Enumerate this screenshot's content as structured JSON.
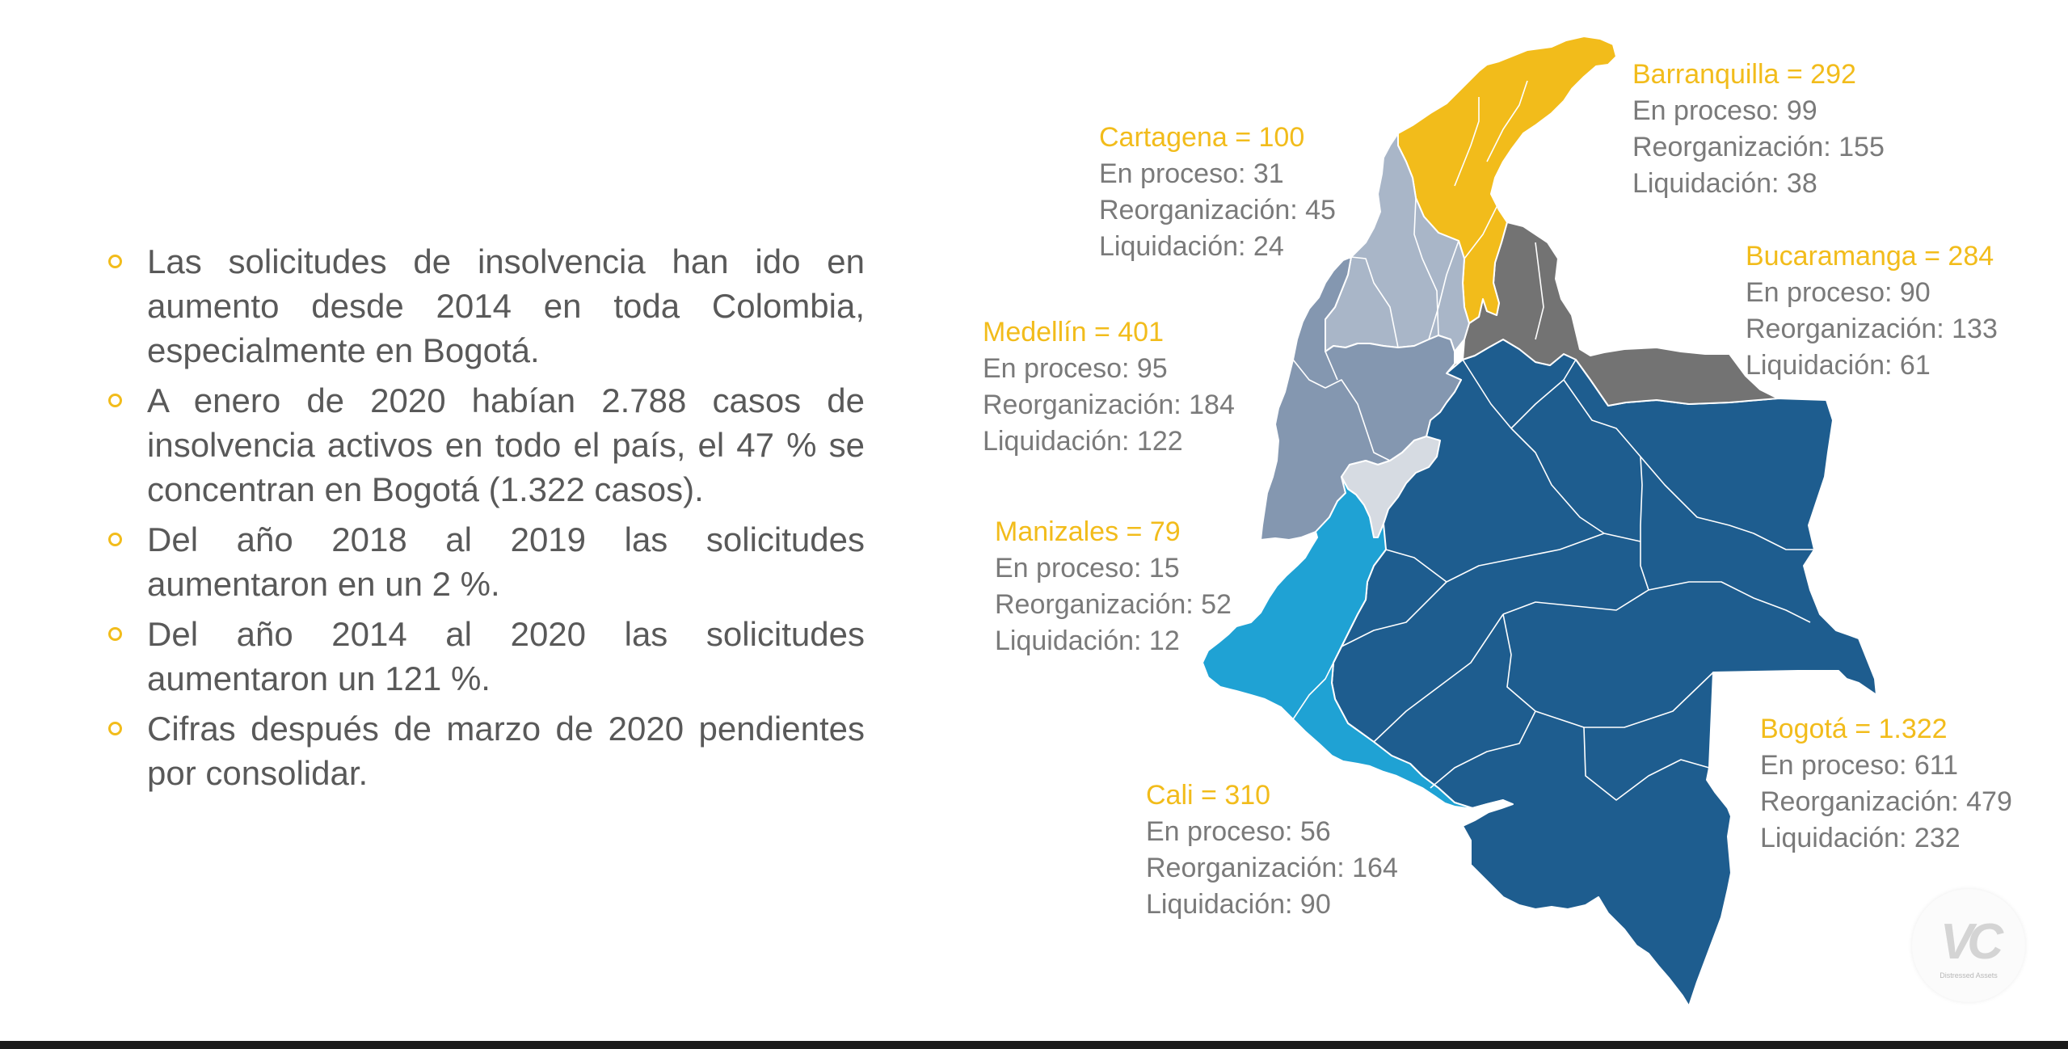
{
  "bullets": [
    "Las solicitudes de insolvencia han ido en aumento desde 2014 en toda Colombia, especialmente en Bogotá.",
    "A enero de 2020 habían 2.788 casos de insolvencia activos en todo el país, el 47 % se concentran en Bogotá (1.322 casos).",
    "Del año 2018 al 2019 las solicitudes aumentaron en un 2 %.",
    "Del año 2014 al 2020 las solicitudes aumentaron un 121 %.",
    "Cifras después de marzo de 2020 pendientes por consolidar."
  ],
  "cities": {
    "barranquilla": {
      "title": "Barranquilla = 292",
      "en_proceso": "En proceso: 99",
      "reorganizacion": "Reorganización: 155",
      "liquidacion": "Liquidación: 38"
    },
    "cartagena": {
      "title": "Cartagena = 100",
      "en_proceso": "En proceso: 31",
      "reorganizacion": "Reorganización: 45",
      "liquidacion": "Liquidación: 24"
    },
    "bucaramanga": {
      "title": "Bucaramanga = 284",
      "en_proceso": "En proceso: 90",
      "reorganizacion": "Reorganización: 133",
      "liquidacion": "Liquidación: 61"
    },
    "medellin": {
      "title": "Medellín = 401",
      "en_proceso": "En proceso: 95",
      "reorganizacion": "Reorganización: 184",
      "liquidacion": "Liquidación: 122"
    },
    "manizales": {
      "title": "Manizales = 79",
      "en_proceso": "En proceso: 15",
      "reorganizacion": "Reorganización: 52",
      "liquidacion": "Liquidación: 12"
    },
    "bogota": {
      "title": "Bogotá = 1.322",
      "en_proceso": "En proceso: 611",
      "reorganizacion": "Reorganización: 479",
      "liquidacion": "Liquidación: 232"
    },
    "cali": {
      "title": "Cali = 310",
      "en_proceso": "En proceso: 56",
      "reorganizacion": "Reorganización: 164",
      "liquidacion": "Liquidación: 90"
    }
  },
  "colors": {
    "accent_yellow": "#f2bc1b",
    "text_gray": "#595959",
    "barranquilla_region": "#f2bc1b",
    "bucaramanga_region": "#737373",
    "cartagena_region": "#a9b6c8",
    "medellin_region": "#8497b0",
    "manizales_region": "#d6dbe2",
    "cali_region": "#1fa2d4",
    "bogota_region": "#1e5d8f"
  },
  "logo": {
    "mark": "VC",
    "caption": "Distressed Assets"
  }
}
